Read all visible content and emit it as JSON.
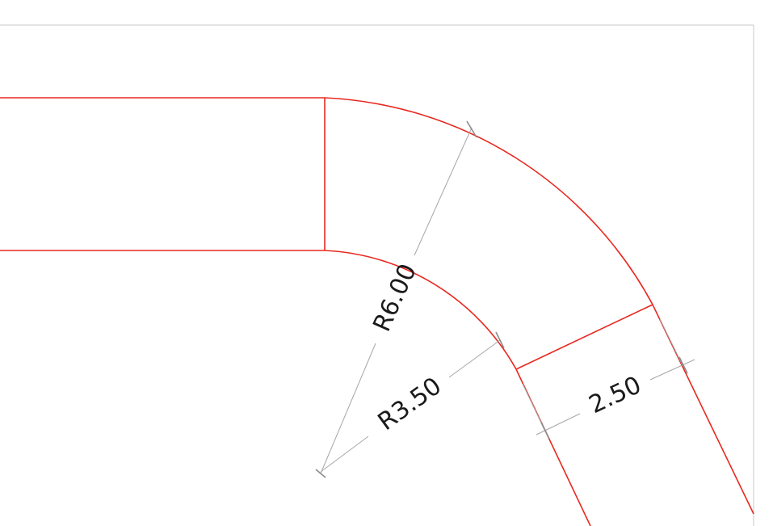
{
  "colors": {
    "geometry": "#e8281f",
    "dimension_line": "#a6a6a6",
    "dimension_tick": "#8c8c8c",
    "dimension_text": "#1a1a1a",
    "frame": "#c8c8c8",
    "background": "#ffffff"
  },
  "dimensions": {
    "outer_radius": "R6.00",
    "inner_radius": "R3.50",
    "width": "2.50"
  }
}
